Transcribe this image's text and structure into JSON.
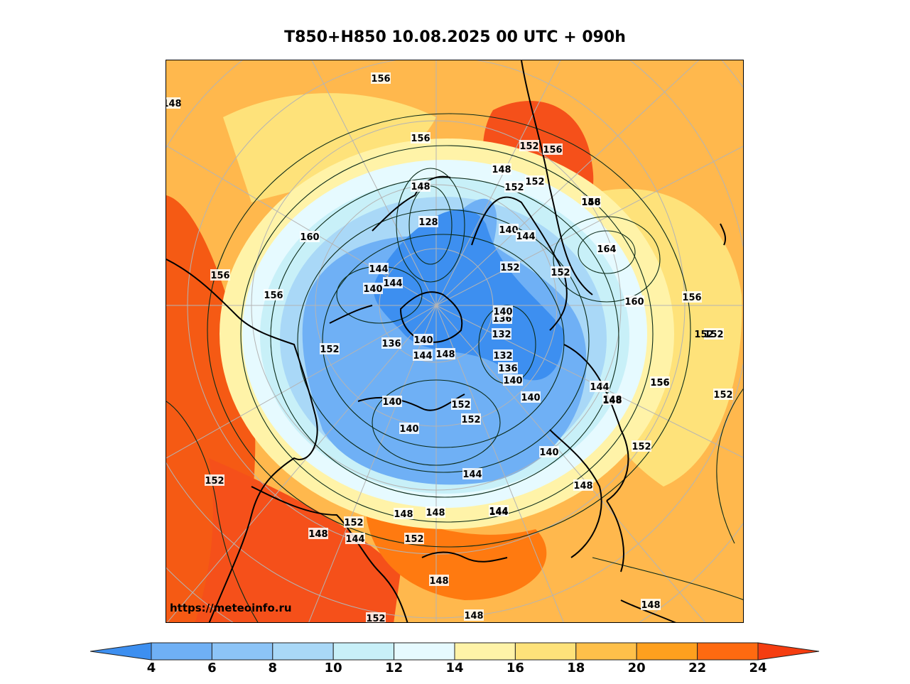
{
  "title": "T850+H850 10.08.2025 00 UTC + 090h",
  "watermark": "https://meteoinfo.ru",
  "map": {
    "projection": "north-polar-stereographic",
    "shaded_field": "T850 (°C)",
    "contour_field": "H850 (dam)",
    "contour_labels": [
      "156",
      "156",
      "152",
      "156",
      "148",
      "148",
      "152",
      "152",
      "148",
      "148",
      "128",
      "140",
      "144",
      "156",
      "164",
      "160",
      "156",
      "152",
      "152",
      "144",
      "140",
      "156",
      "136",
      "144",
      "140",
      "136",
      "148",
      "140",
      "144",
      "132",
      "132",
      "136",
      "140",
      "152",
      "152",
      "144",
      "148",
      "140",
      "140",
      "140",
      "140",
      "144",
      "152",
      "144",
      "148",
      "152",
      "156",
      "152",
      "156",
      "152",
      "152",
      "148",
      "144",
      "144",
      "148",
      "148",
      "152",
      "152",
      "148",
      "152",
      "148",
      "148",
      "148",
      "148",
      "152",
      "160",
      "156"
    ],
    "colors": {
      "cold_core": "#3d8ff0",
      "blue_mid": "#6fb0f5",
      "blue_light": "#a9d8f7",
      "cyan_pale": "#c8f0f8",
      "pale": "#e6faff",
      "yellow_pale": "#fff3a8",
      "yellow": "#fee27a",
      "orange_light": "#ffc04a",
      "orange": "#ffa01e",
      "orange_red": "#ff6a10",
      "red": "#f53d10",
      "coast": "#000000",
      "grid": "#b4b4b4",
      "contour": "#0a2a18"
    }
  },
  "colorbar": {
    "ticks": [
      "4",
      "6",
      "8",
      "10",
      "12",
      "14",
      "16",
      "18",
      "20",
      "22",
      "24"
    ],
    "segments": [
      "#6fb0f5",
      "#8cc4f7",
      "#a9d8f7",
      "#c8f0f8",
      "#e6faff",
      "#fff3a8",
      "#fee27a",
      "#ffc04a",
      "#ffa01e",
      "#ff6a10"
    ],
    "low_extend_color": "#3d8ff0",
    "high_extend_color": "#f53d10"
  }
}
